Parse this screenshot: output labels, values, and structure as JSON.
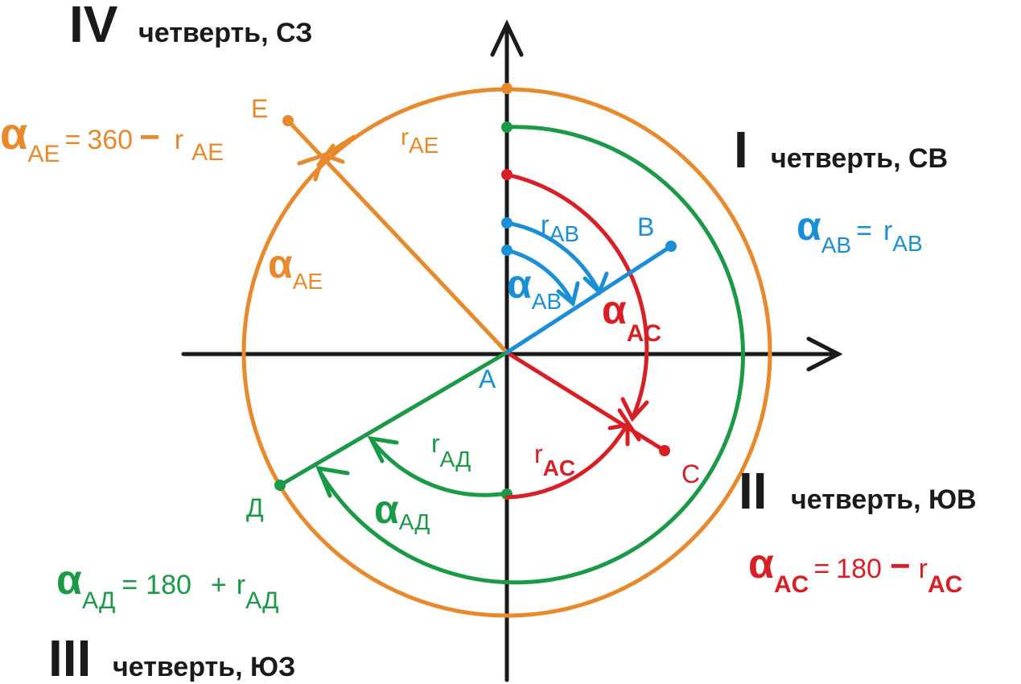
{
  "colors": {
    "axes": "#1a1a1a",
    "ab": "#1a8fd6",
    "ac": "#d91f26",
    "ad": "#1a9a46",
    "ae": "#e8892b"
  },
  "quadrants": {
    "q1": {
      "roman": "I",
      "text": "четверть, СВ"
    },
    "q2": {
      "roman": "II",
      "text": "четверть, ЮВ"
    },
    "q3": {
      "roman": "III",
      "text": "четверть, ЮЗ"
    },
    "q4": {
      "roman": "IV",
      "text": "четверть, СЗ"
    }
  },
  "points": {
    "a": "A",
    "b": "B",
    "c": "C",
    "d": "Д",
    "e": "E"
  },
  "symbols": {
    "alpha": "α",
    "r": "r"
  },
  "subscripts": {
    "ab": "AB",
    "ac": "AC",
    "ad": "АД",
    "ae": "AE"
  },
  "formulas": {
    "ab": {
      "eq": "=",
      "const": "",
      "op": ""
    },
    "ac": {
      "eq": "=",
      "const": "180",
      "op": "−"
    },
    "ad": {
      "eq": "=",
      "const": "180",
      "op": "+"
    },
    "ae": {
      "eq": "=",
      "const": "360",
      "op": "−"
    }
  }
}
